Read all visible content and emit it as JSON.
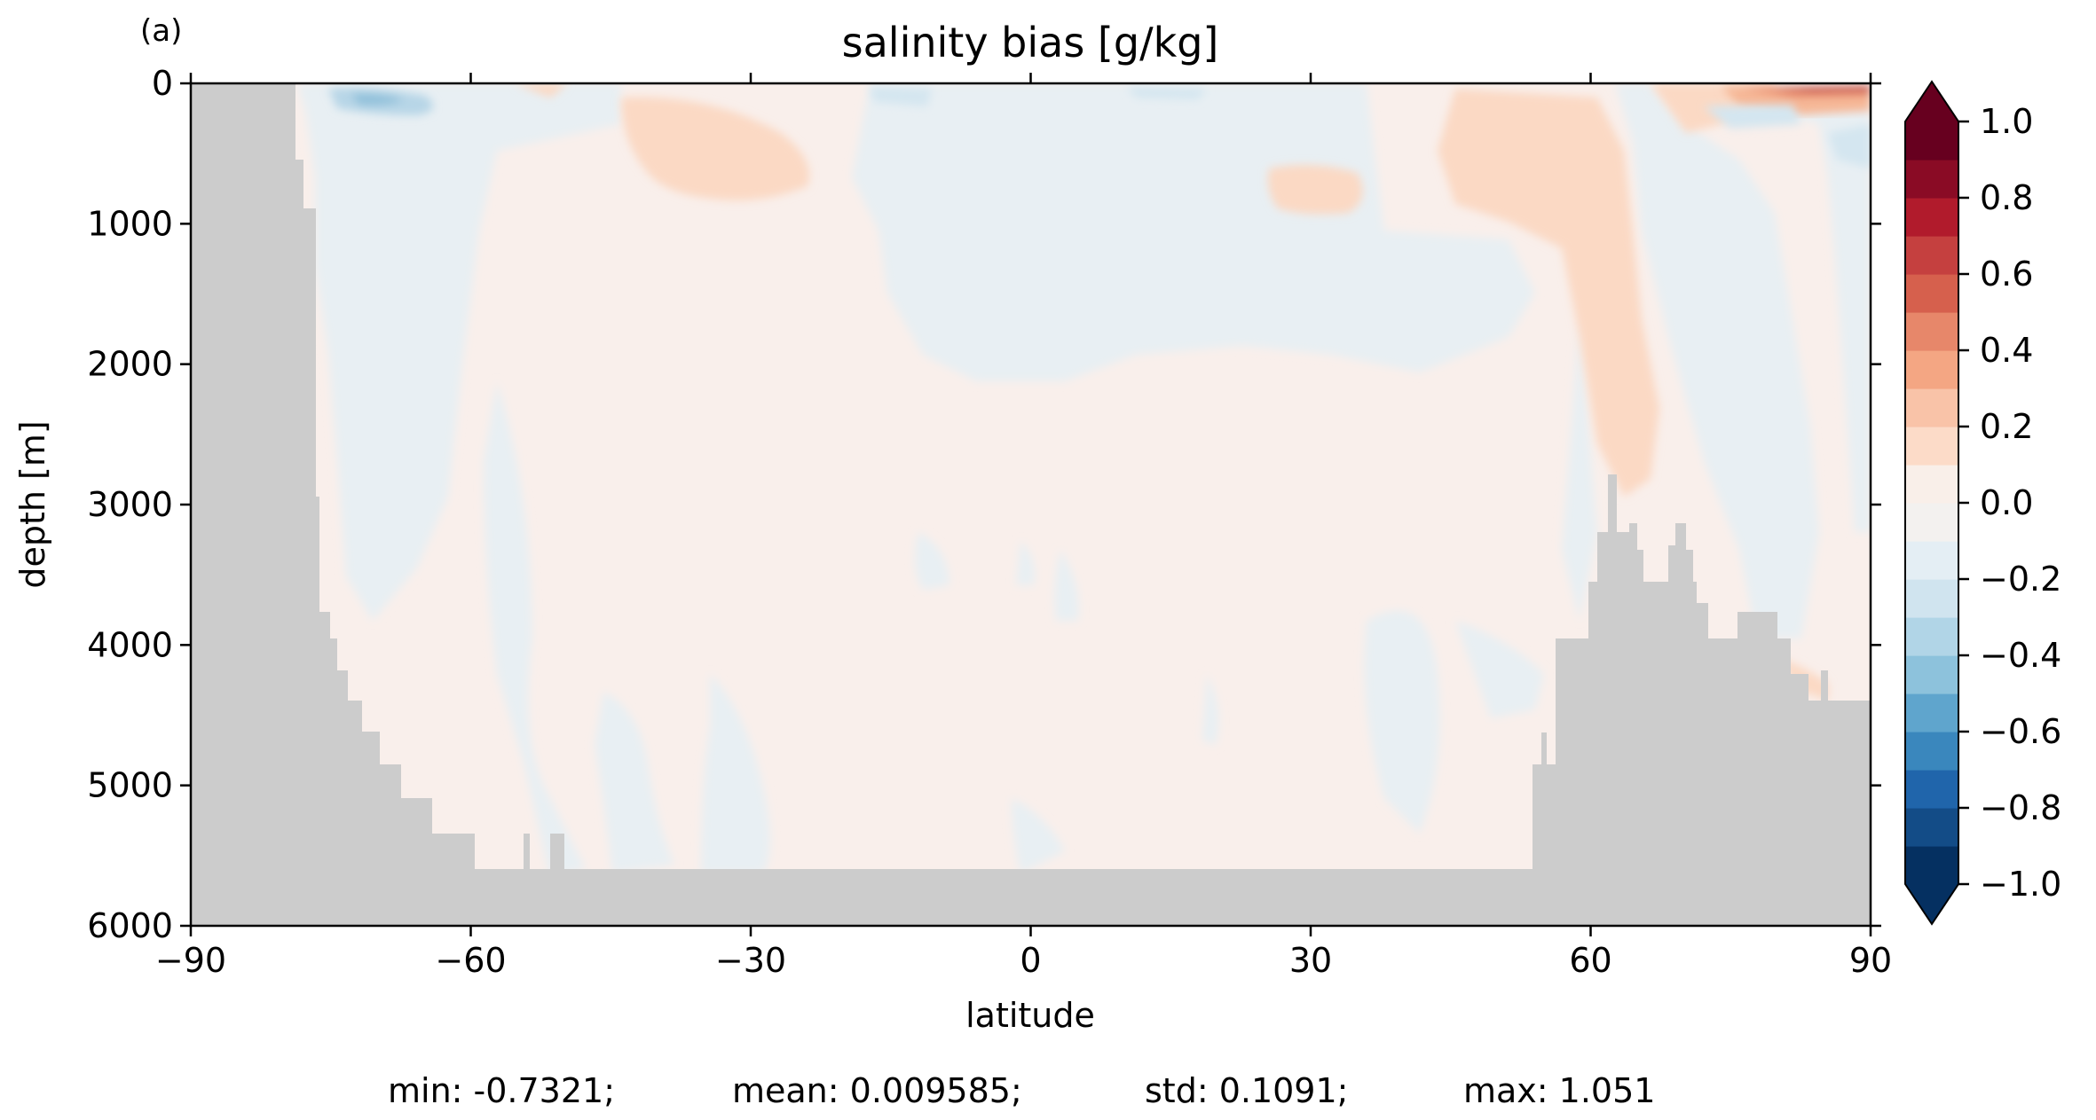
{
  "chart_data": {
    "type": "heatmap",
    "panel_label": "(a)",
    "title": "salinity bias [g/kg]",
    "xlabel": "latitude",
    "ylabel": "depth [m]",
    "xlim": [
      -90,
      90
    ],
    "ylim": [
      6000,
      0
    ],
    "x_ticks": [
      -90,
      -60,
      -30,
      0,
      30,
      60,
      90
    ],
    "x_tick_labels": [
      "−90",
      "−60",
      "−30",
      "0",
      "30",
      "60",
      "90"
    ],
    "y_ticks": [
      0,
      1000,
      2000,
      3000,
      4000,
      5000,
      6000
    ],
    "y_tick_labels": [
      "0",
      "1000",
      "2000",
      "3000",
      "4000",
      "5000",
      "6000"
    ],
    "colorbar": {
      "min": -1.0,
      "max": 1.0,
      "extend": "both",
      "levels": 20,
      "colors": [
        "#053061",
        "#134c87",
        "#2065ab",
        "#3a87bd",
        "#5fa5cd",
        "#8dc2dc",
        "#b1d5e7",
        "#d0e4ef",
        "#e4eef4",
        "#f3f1ef",
        "#f9efe9",
        "#fcdbc8",
        "#f9c3a8",
        "#f4a683",
        "#e7876a",
        "#d6604d",
        "#c5403f",
        "#b11b2c",
        "#8a0b25",
        "#67001f"
      ],
      "ticks": [
        1.0,
        0.8,
        0.6,
        0.4,
        0.2,
        0.0,
        -0.2,
        -0.4,
        -0.6,
        -0.8,
        -1.0
      ],
      "tick_labels": [
        "1.0",
        "0.8",
        "0.6",
        "0.4",
        "0.2",
        "0.0",
        "−0.2",
        "−0.4",
        "−0.6",
        "−0.8",
        "−1.0"
      ]
    },
    "land_color": "#cccccc",
    "stats": {
      "min": "min: -0.7321;",
      "mean": "mean: 0.009585;",
      "std": "std: 0.1091;",
      "max": "max: 1.051"
    },
    "grid": false
  }
}
